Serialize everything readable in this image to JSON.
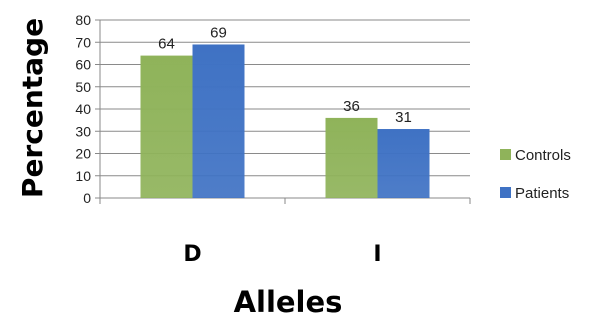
{
  "chart_data": {
    "type": "bar",
    "categories": [
      "D",
      "I"
    ],
    "series": [
      {
        "name": "Controls",
        "values": [
          64,
          36
        ],
        "color": "#8fb35a"
      },
      {
        "name": "Patients",
        "values": [
          69,
          31
        ],
        "color": "#3f72c4"
      }
    ],
    "xlabel": "Alleles",
    "ylabel": "Percentage",
    "ylim": [
      0,
      80
    ],
    "yticks": [
      0,
      10,
      20,
      30,
      40,
      50,
      60,
      70,
      80
    ],
    "grid": true,
    "legend_position": "right",
    "data_labels": true
  }
}
